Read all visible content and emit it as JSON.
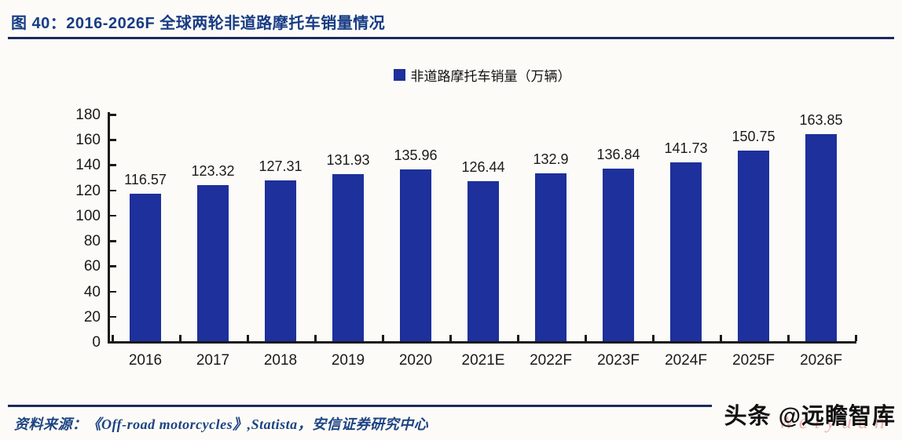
{
  "title": "图 40：2016-2026F 全球两轮非道路摩托车销量情况",
  "legend": {
    "label": "非道路摩托车销量（万辆）"
  },
  "chart_data": {
    "type": "bar",
    "title": "2016-2026F 全球两轮非道路摩托车销量情况",
    "categories": [
      "2016",
      "2017",
      "2018",
      "2019",
      "2020",
      "2021E",
      "2022F",
      "2023F",
      "2024F",
      "2025F",
      "2026F"
    ],
    "values": [
      116.57,
      123.32,
      127.31,
      131.93,
      135.96,
      126.44,
      132.9,
      136.84,
      141.73,
      150.75,
      163.85
    ],
    "value_labels": [
      "116.57",
      "123.32",
      "127.31",
      "131.93",
      "135.96",
      "126.44",
      "132.9",
      "136.84",
      "141.73",
      "150.75",
      "163.85"
    ],
    "series_name": "非道路摩托车销量（万辆）",
    "xlabel": "",
    "ylabel": "",
    "ylim": [
      0,
      180
    ],
    "ytick_step": 20,
    "grid": false,
    "legend_position": "top-center",
    "bar_color": "#1d309b",
    "axis_color": "#1a1a1a"
  },
  "source": {
    "label": "资料来源：《Off-road motorcycles》,Statista，安信证券研究中心"
  },
  "watermark": {
    "text": "头条 @远瞻智库",
    "red_text": "Weiyuan"
  },
  "colors": {
    "accent_navy": "#1b2a5e",
    "title_blue": "#173c85",
    "bar_blue": "#1d309b",
    "page_bg": "#fcfbf7"
  }
}
